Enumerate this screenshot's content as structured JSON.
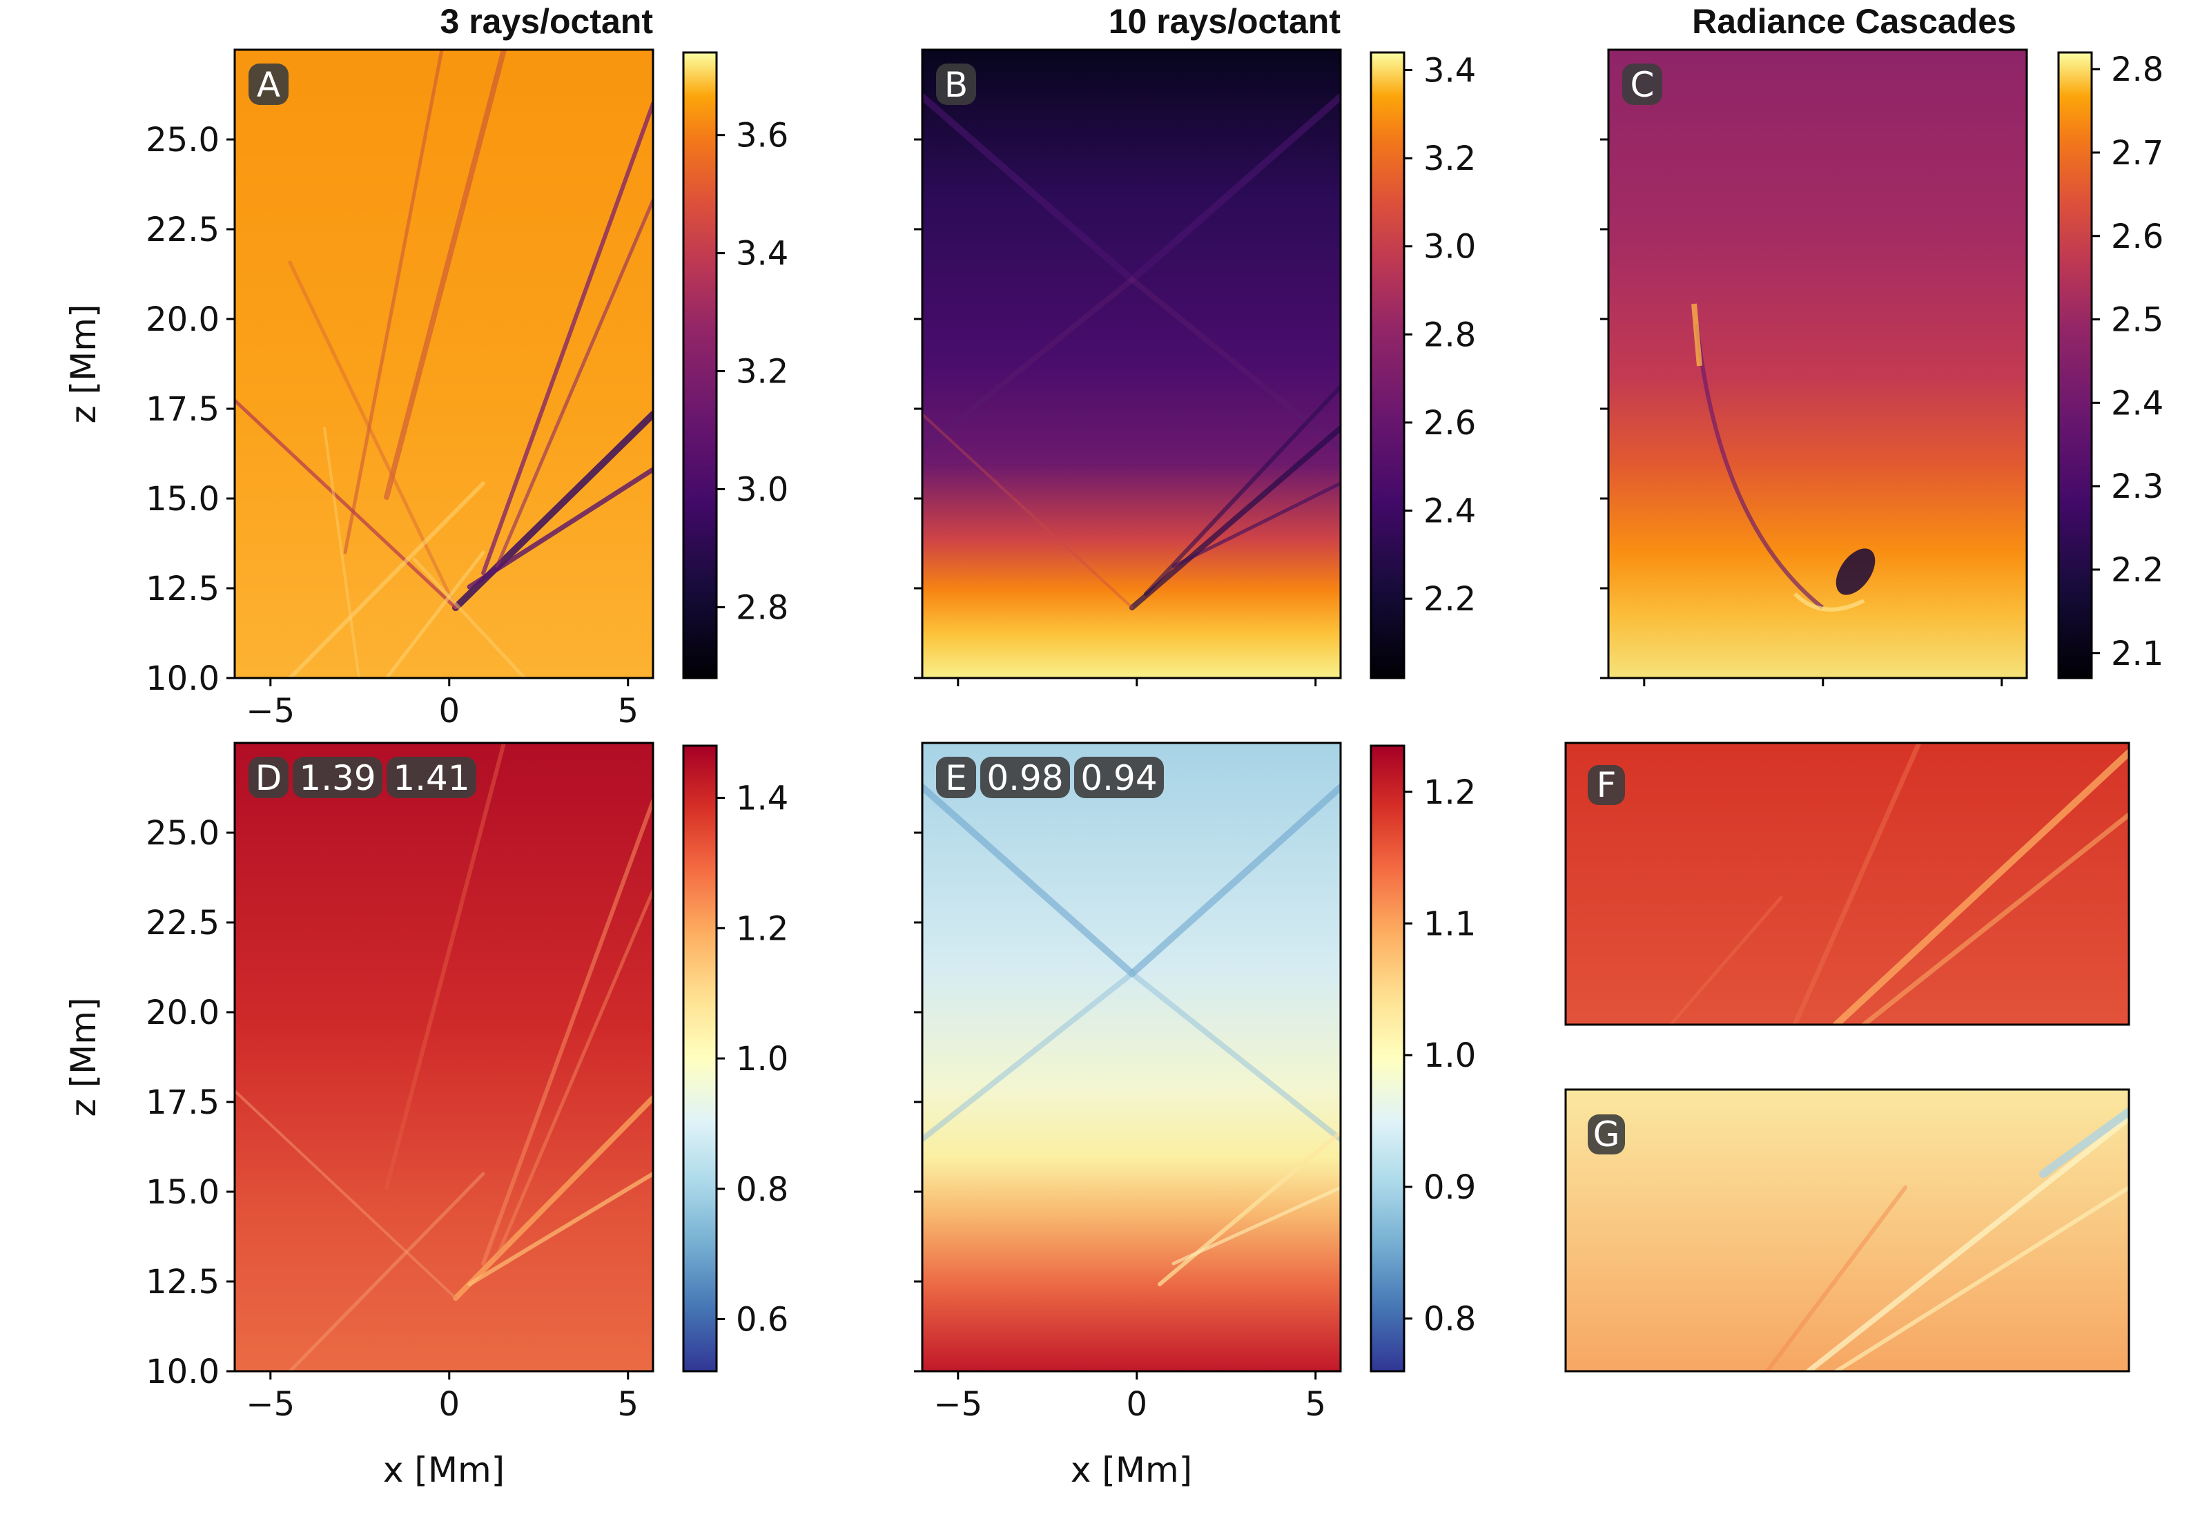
{
  "column_titles": [
    "3 rays/octant",
    "10 rays/octant",
    "Radiance Cascades"
  ],
  "chart_data": [
    {
      "type": "heatmap",
      "panel": "A",
      "column_title": "3 rays/octant",
      "xlabel": "x [Mm]",
      "ylabel": "z [Mm]",
      "xlim": [
        -6,
        5.7
      ],
      "ylim": [
        10,
        27.5
      ],
      "xticks": [
        "−5",
        "0",
        "5"
      ],
      "yticks": [
        "10.0",
        "12.5",
        "15.0",
        "17.5",
        "20.0",
        "22.5",
        "25.0"
      ],
      "yticks_values": [
        10,
        12.5,
        15,
        17.5,
        20,
        22.5,
        25
      ],
      "colormap": "inferno",
      "colorbar": {
        "ticks": [
          "2.8",
          "3.0",
          "3.2",
          "3.4",
          "3.6"
        ],
        "ticks_values": [
          2.8,
          3.0,
          3.2,
          3.4,
          3.6
        ],
        "range": [
          2.68,
          3.74
        ]
      }
    },
    {
      "type": "heatmap",
      "panel": "B",
      "column_title": "10 rays/octant",
      "xlabel": "",
      "ylabel": "",
      "xlim": [
        -6,
        5.7
      ],
      "ylim": [
        10,
        27.5
      ],
      "colormap": "inferno",
      "colorbar": {
        "ticks": [
          "2.2",
          "2.4",
          "2.6",
          "2.8",
          "3.0",
          "3.2",
          "3.4"
        ],
        "ticks_values": [
          2.2,
          2.4,
          2.6,
          2.8,
          3.0,
          3.2,
          3.4
        ],
        "range": [
          2.02,
          3.44
        ]
      }
    },
    {
      "type": "heatmap",
      "panel": "C",
      "column_title": "Radiance Cascades",
      "xlabel": "",
      "ylabel": "",
      "xlim": [
        -6,
        5.7
      ],
      "ylim": [
        10,
        27.5
      ],
      "colormap": "inferno",
      "colorbar": {
        "ticks": [
          "2.1",
          "2.2",
          "2.3",
          "2.4",
          "2.5",
          "2.6",
          "2.7",
          "2.8"
        ],
        "ticks_values": [
          2.1,
          2.2,
          2.3,
          2.4,
          2.5,
          2.6,
          2.7,
          2.8
        ],
        "range": [
          2.07,
          2.82
        ]
      }
    },
    {
      "type": "heatmap",
      "panel": "D",
      "annotations": [
        "1.39",
        "1.41"
      ],
      "xlabel": "x [Mm]",
      "ylabel": "z [Mm]",
      "xlim": [
        -6,
        5.7
      ],
      "ylim": [
        10,
        27.5
      ],
      "xticks": [
        "−5",
        "0",
        "5"
      ],
      "xticks_values": [
        -5,
        0,
        5
      ],
      "yticks": [
        "10.0",
        "12.5",
        "15.0",
        "17.5",
        "20.0",
        "22.5",
        "25.0"
      ],
      "yticks_values": [
        10,
        12.5,
        15,
        17.5,
        20,
        22.5,
        25
      ],
      "colormap": "RdYlBu_r",
      "colorbar": {
        "ticks": [
          "0.6",
          "0.8",
          "1.0",
          "1.2",
          "1.4"
        ],
        "ticks_values": [
          0.6,
          0.8,
          1.0,
          1.2,
          1.4
        ],
        "range": [
          0.52,
          1.48
        ]
      }
    },
    {
      "type": "heatmap",
      "panel": "E",
      "annotations": [
        "0.98",
        "0.94"
      ],
      "xlabel": "x [Mm]",
      "ylabel": "",
      "xlim": [
        -6,
        5.7
      ],
      "ylim": [
        10,
        27.5
      ],
      "xticks": [
        "−5",
        "0",
        "5"
      ],
      "xticks_values": [
        -5,
        0,
        5
      ],
      "colormap": "RdYlBu_r",
      "colorbar": {
        "ticks": [
          "0.8",
          "0.9",
          "1.0",
          "1.1",
          "1.2"
        ],
        "ticks_values": [
          0.8,
          0.9,
          1.0,
          1.1,
          1.2
        ],
        "range": [
          0.76,
          1.235
        ]
      }
    },
    {
      "type": "heatmap",
      "panel": "F",
      "colormap": "RdYlBu_r"
    },
    {
      "type": "heatmap",
      "panel": "G",
      "colormap": "RdYlBu_r"
    }
  ]
}
